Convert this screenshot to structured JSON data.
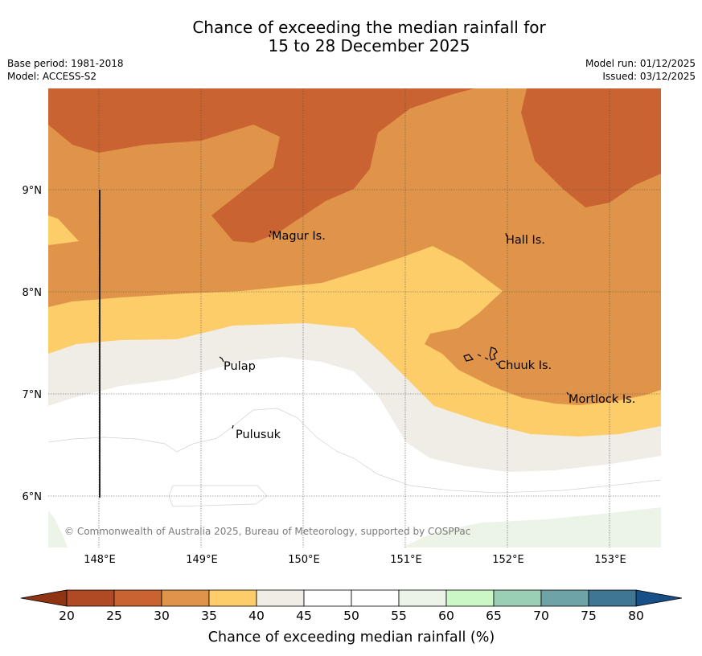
{
  "title": {
    "line1": "Chance of exceeding the median rainfall for",
    "line2": "15 to 28 December 2025"
  },
  "meta": {
    "base_period": "Base period: 1981-2018",
    "model": "Model: ACCESS-S2",
    "model_run": "Model run: 01/12/2025",
    "issued": "Issued: 03/12/2025"
  },
  "map": {
    "lat_labels": [
      "9°N",
      "8°N",
      "7°N",
      "6°N"
    ],
    "lon_labels": [
      "148°E",
      "149°E",
      "150°E",
      "151°E",
      "152°E",
      "153°E"
    ],
    "places": [
      "Magur Is.",
      "Hall Is.",
      "Pulap",
      "Chuuk Is.",
      "Mortlock Is.",
      "Pulusuk"
    ],
    "copyright": "© Commonwealth of Australia 2025, Bureau of Meteorology, supported by COSPPac"
  },
  "colorbar": {
    "ticks": [
      "20",
      "25",
      "30",
      "35",
      "40",
      "45",
      "50",
      "55",
      "60",
      "65",
      "70",
      "75",
      "80"
    ],
    "colors": [
      "#b04a25",
      "#c96331",
      "#e0944a",
      "#fdcd6a",
      "#f0ece6",
      "#ffffff",
      "#ffffff",
      "#ebf4e7",
      "#cbf7c7",
      "#9bcfb5",
      "#6ea4a8",
      "#3e7694"
    ],
    "under_color": "#8e3414",
    "over_color": "#184f86",
    "label": "Chance of exceeding median rainfall (%)"
  }
}
